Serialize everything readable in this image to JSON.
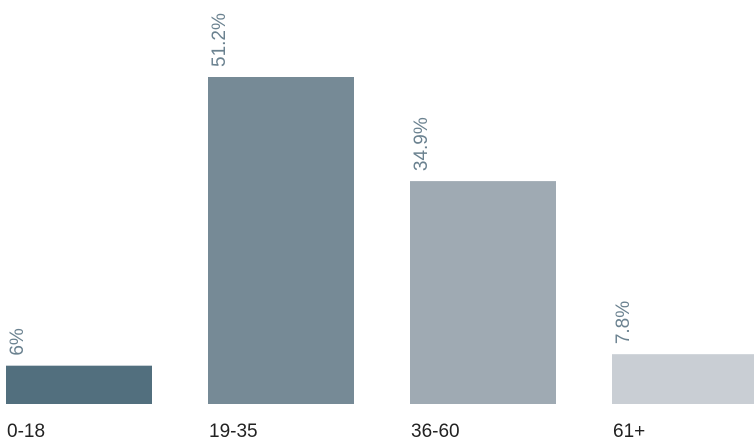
{
  "chart_data": {
    "type": "bar",
    "categories": [
      "0-18",
      "19-35",
      "36-60",
      "61+"
    ],
    "values": [
      6,
      51.2,
      34.9,
      7.8
    ],
    "value_labels": [
      "6%",
      "51.2%",
      "34.9%",
      "7.8%"
    ],
    "bar_colors": [
      "#526F7E",
      "#768A96",
      "#9FAAB3",
      "#C9CED4"
    ],
    "label_color": "#6B8290",
    "ylim": [
      0,
      51.2
    ],
    "grid": false,
    "legend": "none",
    "title": "",
    "xlabel": "",
    "ylabel": ""
  }
}
